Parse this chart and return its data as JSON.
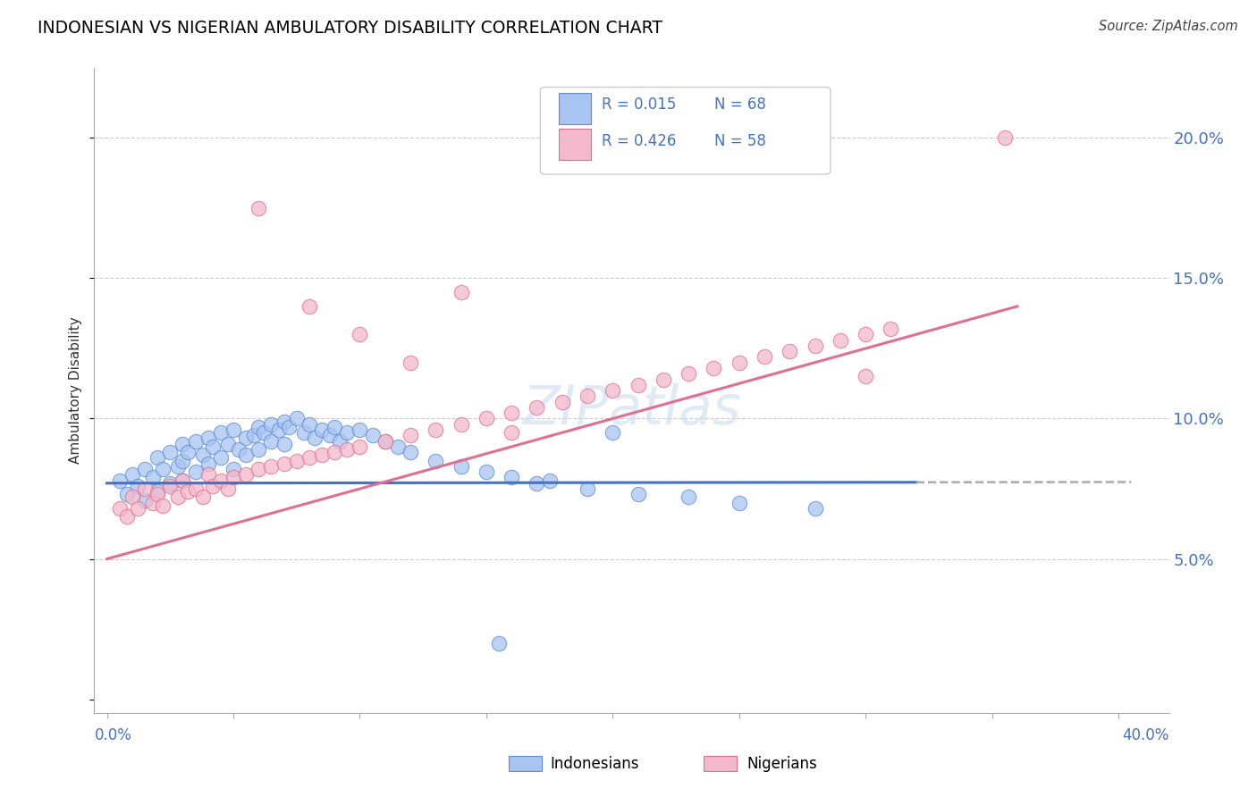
{
  "title": "INDONESIAN VS NIGERIAN AMBULATORY DISABILITY CORRELATION CHART",
  "source": "Source: ZipAtlas.com",
  "ylabel": "Ambulatory Disability",
  "y_ticks": [
    0.05,
    0.1,
    0.15,
    0.2
  ],
  "y_tick_labels": [
    "5.0%",
    "10.0%",
    "15.0%",
    "20.0%"
  ],
  "color_indo": "#a8c4f0",
  "color_nig": "#f4b8cc",
  "color_indo_edge": "#5b8dd9",
  "color_nig_edge": "#e0708a",
  "color_indo_line": "#4472c4",
  "color_nig_line": "#e07090",
  "color_text_blue": "#4472c4",
  "legend_R_indo": "R = 0.015",
  "legend_N_indo": "N = 68",
  "legend_R_nig": "R = 0.426",
  "legend_N_nig": "N = 58",
  "legend_label_indo": "Indonesians",
  "legend_label_nig": "Nigerians",
  "watermark": "ZIPatlas",
  "indo_x": [
    0.005,
    0.008,
    0.01,
    0.012,
    0.015,
    0.015,
    0.018,
    0.02,
    0.02,
    0.022,
    0.025,
    0.025,
    0.028,
    0.03,
    0.03,
    0.03,
    0.032,
    0.035,
    0.035,
    0.038,
    0.04,
    0.04,
    0.042,
    0.045,
    0.045,
    0.048,
    0.05,
    0.05,
    0.052,
    0.055,
    0.055,
    0.058,
    0.06,
    0.06,
    0.062,
    0.065,
    0.065,
    0.068,
    0.07,
    0.07,
    0.072,
    0.075,
    0.078,
    0.08,
    0.082,
    0.085,
    0.088,
    0.09,
    0.092,
    0.095,
    0.1,
    0.105,
    0.11,
    0.115,
    0.12,
    0.13,
    0.14,
    0.15,
    0.16,
    0.17,
    0.19,
    0.21,
    0.23,
    0.25,
    0.28,
    0.2,
    0.175,
    0.155
  ],
  "indo_y": [
    0.078,
    0.073,
    0.08,
    0.076,
    0.082,
    0.071,
    0.079,
    0.086,
    0.074,
    0.082,
    0.088,
    0.077,
    0.083,
    0.091,
    0.085,
    0.078,
    0.088,
    0.092,
    0.081,
    0.087,
    0.093,
    0.084,
    0.09,
    0.095,
    0.086,
    0.091,
    0.096,
    0.082,
    0.089,
    0.093,
    0.087,
    0.094,
    0.097,
    0.089,
    0.095,
    0.098,
    0.092,
    0.096,
    0.099,
    0.091,
    0.097,
    0.1,
    0.095,
    0.098,
    0.093,
    0.096,
    0.094,
    0.097,
    0.092,
    0.095,
    0.096,
    0.094,
    0.092,
    0.09,
    0.088,
    0.085,
    0.083,
    0.081,
    0.079,
    0.077,
    0.075,
    0.073,
    0.072,
    0.07,
    0.068,
    0.095,
    0.078,
    0.02
  ],
  "nig_x": [
    0.005,
    0.008,
    0.01,
    0.012,
    0.015,
    0.018,
    0.02,
    0.022,
    0.025,
    0.028,
    0.03,
    0.032,
    0.035,
    0.038,
    0.04,
    0.042,
    0.045,
    0.048,
    0.05,
    0.055,
    0.06,
    0.065,
    0.07,
    0.075,
    0.08,
    0.085,
    0.09,
    0.095,
    0.1,
    0.11,
    0.12,
    0.13,
    0.14,
    0.15,
    0.16,
    0.17,
    0.18,
    0.19,
    0.2,
    0.21,
    0.22,
    0.23,
    0.24,
    0.25,
    0.26,
    0.27,
    0.28,
    0.29,
    0.3,
    0.31,
    0.06,
    0.08,
    0.1,
    0.12,
    0.14,
    0.16,
    0.355,
    0.3
  ],
  "nig_y": [
    0.068,
    0.065,
    0.072,
    0.068,
    0.075,
    0.07,
    0.073,
    0.069,
    0.076,
    0.072,
    0.078,
    0.074,
    0.075,
    0.072,
    0.08,
    0.076,
    0.078,
    0.075,
    0.079,
    0.08,
    0.082,
    0.083,
    0.084,
    0.085,
    0.086,
    0.087,
    0.088,
    0.089,
    0.09,
    0.092,
    0.094,
    0.096,
    0.098,
    0.1,
    0.102,
    0.104,
    0.106,
    0.108,
    0.11,
    0.112,
    0.114,
    0.116,
    0.118,
    0.12,
    0.122,
    0.124,
    0.126,
    0.128,
    0.13,
    0.132,
    0.175,
    0.14,
    0.13,
    0.12,
    0.145,
    0.095,
    0.2,
    0.115
  ]
}
